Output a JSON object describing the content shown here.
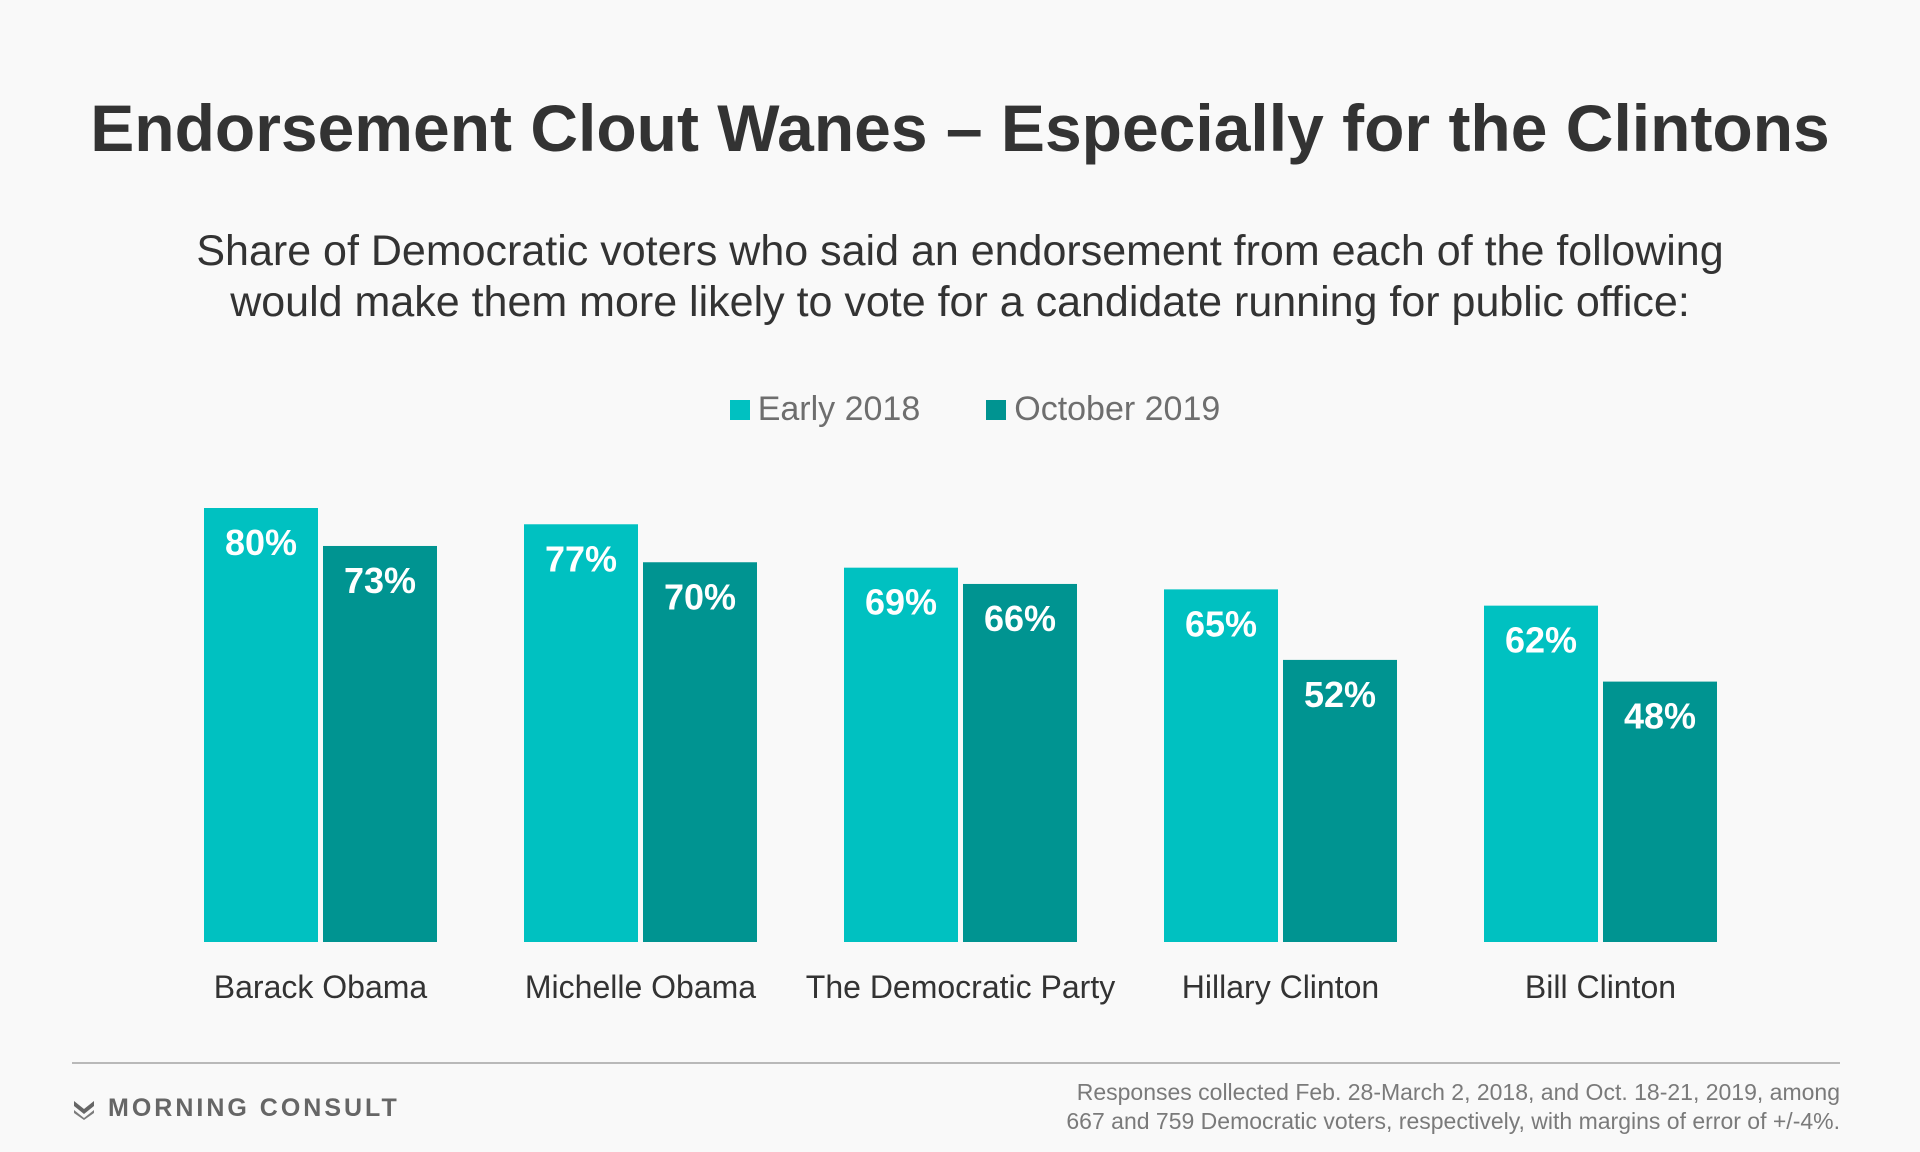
{
  "colors": {
    "early_2018": "#00c1c1",
    "october_2019": "#009491"
  },
  "brand": {
    "name": "MORNING CONSULT",
    "logo_icon": "morning-consult-chevron-icon"
  },
  "footnote": {
    "line1": "Responses collected Feb. 28-March 2, 2018, and Oct. 18-21, 2019, among",
    "line2": "667 and 759 Democratic voters, respectively, with margins of error of +/-4%."
  },
  "chart_data": {
    "type": "bar",
    "title": "Endorsement Clout Wanes – Especially for the Clintons",
    "subtitle_line1": "Share of Democratic voters who said an endorsement from each of the following",
    "subtitle_line2": "would make them more likely to vote for a candidate running for public office:",
    "categories": [
      "Barack Obama",
      "Michelle Obama",
      "The Democratic Party",
      "Hillary Clinton",
      "Bill Clinton"
    ],
    "series": [
      {
        "name": "Early 2018",
        "values": [
          80,
          77,
          69,
          65,
          62
        ],
        "labels": [
          "80%",
          "77%",
          "69%",
          "65%",
          "62%"
        ]
      },
      {
        "name": "October 2019",
        "values": [
          73,
          70,
          66,
          52,
          48
        ],
        "labels": [
          "73%",
          "70%",
          "66%",
          "52%",
          "48%"
        ]
      }
    ],
    "value_suffix": "%",
    "ylim": [
      0,
      100
    ],
    "grid": false,
    "legend_position": "top-center",
    "xlabel": "",
    "ylabel": ""
  }
}
